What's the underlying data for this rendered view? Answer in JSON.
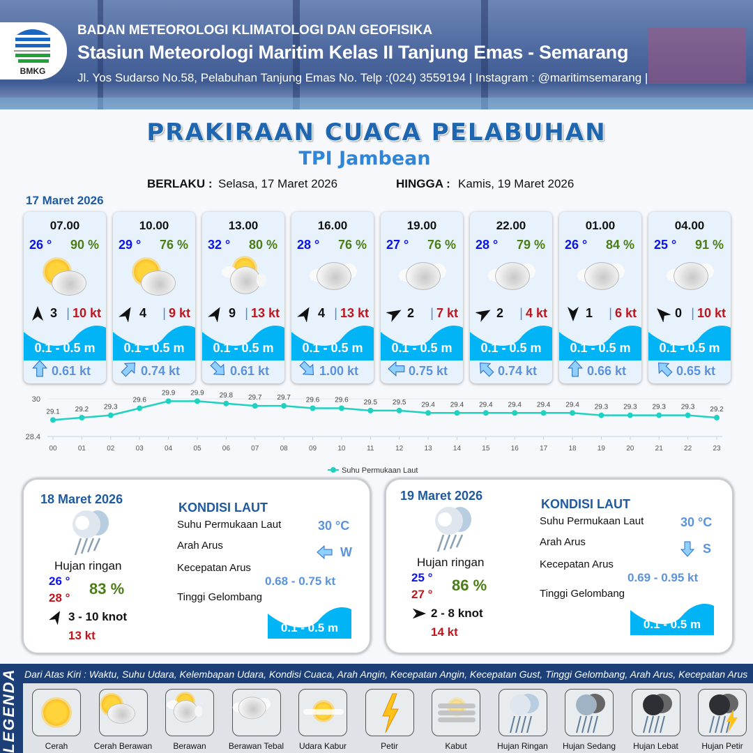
{
  "header": {
    "org": "BADAN METEOROLOGI KLIMATOLOGI DAN GEOFISIKA",
    "station": "Stasiun Meteorologi Maritim Kelas II Tanjung Emas - Semarang",
    "address": "Jl. Yos Sudarso No.58, Pelabuhan Tanjung Emas No. Telp :(024) 3559194 | Instagram : @maritimsemarang |",
    "logo_text": "BMKG"
  },
  "title": "PRAKIRAAN CUACA PELABUHAN",
  "subtitle": "TPI Jambean",
  "validity": {
    "from_label": "BERLAKU :",
    "from": "Selasa, 17 Maret 2026",
    "to_label": "HINGGA :",
    "to": "Kamis, 19 Maret 2026"
  },
  "day1": {
    "date": "17 Maret 2026",
    "cards": [
      {
        "time": "07.00",
        "temp": "26 °",
        "hum": "90 %",
        "weather": "cerah-berawan",
        "wind_dir_deg": 0,
        "wind": "3",
        "gust": "10 kt",
        "wave": "0.1 - 0.5 m",
        "current_dir_deg": 0,
        "current": "0.61 kt"
      },
      {
        "time": "10.00",
        "temp": "29 °",
        "hum": "76 %",
        "weather": "cerah-berawan",
        "wind_dir_deg": 30,
        "wind": "4",
        "gust": "9 kt",
        "wave": "0.1 - 0.5 m",
        "current_dir_deg": 45,
        "current": "0.74 kt"
      },
      {
        "time": "13.00",
        "temp": "32 °",
        "hum": "80 %",
        "weather": "berawan",
        "wind_dir_deg": 30,
        "wind": "9",
        "gust": "13 kt",
        "wave": "0.1 - 0.5 m",
        "current_dir_deg": 135,
        "current": "0.61 kt"
      },
      {
        "time": "16.00",
        "temp": "28 °",
        "hum": "76 %",
        "weather": "berawan-tebal",
        "wind_dir_deg": 30,
        "wind": "4",
        "gust": "13 kt",
        "wave": "0.1 - 0.5 m",
        "current_dir_deg": 135,
        "current": "1.00 kt"
      },
      {
        "time": "19.00",
        "temp": "27 °",
        "hum": "76 %",
        "weather": "berawan-tebal",
        "wind_dir_deg": 60,
        "wind": "2",
        "gust": "7 kt",
        "wave": "0.1 - 0.5 m",
        "current_dir_deg": 270,
        "current": "0.75 kt"
      },
      {
        "time": "22.00",
        "temp": "28 °",
        "hum": "79 %",
        "weather": "berawan-tebal",
        "wind_dir_deg": 60,
        "wind": "2",
        "gust": "4 kt",
        "wave": "0.1 - 0.5 m",
        "current_dir_deg": 315,
        "current": "0.74 kt"
      },
      {
        "time": "01.00",
        "temp": "26 °",
        "hum": "84 %",
        "weather": "berawan-tebal",
        "wind_dir_deg": 180,
        "wind": "1",
        "gust": "6 kt",
        "wave": "0.1 - 0.5 m",
        "current_dir_deg": 0,
        "current": "0.66 kt"
      },
      {
        "time": "04.00",
        "temp": "25 °",
        "hum": "91 %",
        "weather": "berawan-tebal",
        "wind_dir_deg": -45,
        "wind": "0",
        "gust": "10 kt",
        "wave": "0.1 - 0.5 m",
        "current_dir_deg": 315,
        "current": "0.65 kt"
      }
    ]
  },
  "chart_data": {
    "type": "line",
    "categories": [
      "00",
      "01",
      "02",
      "03",
      "04",
      "05",
      "06",
      "07",
      "08",
      "09",
      "10",
      "11",
      "12",
      "13",
      "14",
      "15",
      "16",
      "17",
      "18",
      "19",
      "20",
      "21",
      "22",
      "23"
    ],
    "series": [
      {
        "name": "Suhu Permukaan Laut",
        "values": [
          29.1,
          29.2,
          29.3,
          29.6,
          29.9,
          29.9,
          29.8,
          29.7,
          29.7,
          29.6,
          29.6,
          29.5,
          29.5,
          29.4,
          29.4,
          29.4,
          29.4,
          29.4,
          29.4,
          29.3,
          29.3,
          29.3,
          29.3,
          29.2
        ]
      }
    ],
    "ylim": [
      28.4,
      30
    ],
    "yticks": [
      "30",
      "28.4"
    ],
    "color": "#1fd1c1",
    "legend": "bottom"
  },
  "panels": [
    {
      "date": "18 Maret 2026",
      "weather": "Hujan ringan",
      "tmin": "26 °",
      "tmax": "28 °",
      "hum": "83 %",
      "wind_dir_deg": 30,
      "wind": "3  - 10 knot",
      "gust": "13 kt",
      "heading": "KONDISI LAUT",
      "sst_label": "Suhu Permukaan Laut",
      "sst": "30 °C",
      "dir_label": "Arah Arus",
      "dir": "W",
      "current_dir_deg": 270,
      "speed_label": "Kecepatan Arus",
      "speed": "0.68 - 0.75 kt",
      "wave_label": "Tinggi Gelombang",
      "wave": "0.1 - 0.5 m"
    },
    {
      "date": "19 Maret 2026",
      "weather": "Hujan ringan",
      "tmin": "25 °",
      "tmax": "27 °",
      "hum": "86 %",
      "wind_dir_deg": 90,
      "wind": "2  - 8 knot",
      "gust": "14 kt",
      "heading": "KONDISI LAUT",
      "sst_label": "Suhu Permukaan Laut",
      "sst": "30 °C",
      "dir_label": "Arah Arus",
      "dir": "S",
      "current_dir_deg": 180,
      "speed_label": "Kecepatan Arus",
      "speed": "0.69 - 0.95 kt",
      "wave_label": "Tinggi Gelombang",
      "wave": "0.1 - 0.5 m"
    }
  ],
  "legend": {
    "side": "LEGENDA",
    "text": "Dari Atas Kiri : Waktu, Suhu Udara, Kelembapan Udara, Kondisi Cuaca, Arah Angin, Kecepatan Angin, Kecepatan Gust, Tinggi Gelombang, Arah Arus, Kecepatan Arus",
    "items": [
      "Cerah",
      "Cerah Berawan",
      "Berawan",
      "Berawan Tebal",
      "Udara Kabur",
      "Petir",
      "Kabut",
      "Hujan Ringan",
      "Hujan Sedang",
      "Hujan Lebat",
      "Hujan Petir"
    ]
  },
  "colors": {
    "wave": "#00b4f5",
    "temp": "#0a12ee",
    "hum": "#4b7d15",
    "gust": "#c0141b",
    "current": "#5a93dc",
    "title": "#1f66b0"
  }
}
